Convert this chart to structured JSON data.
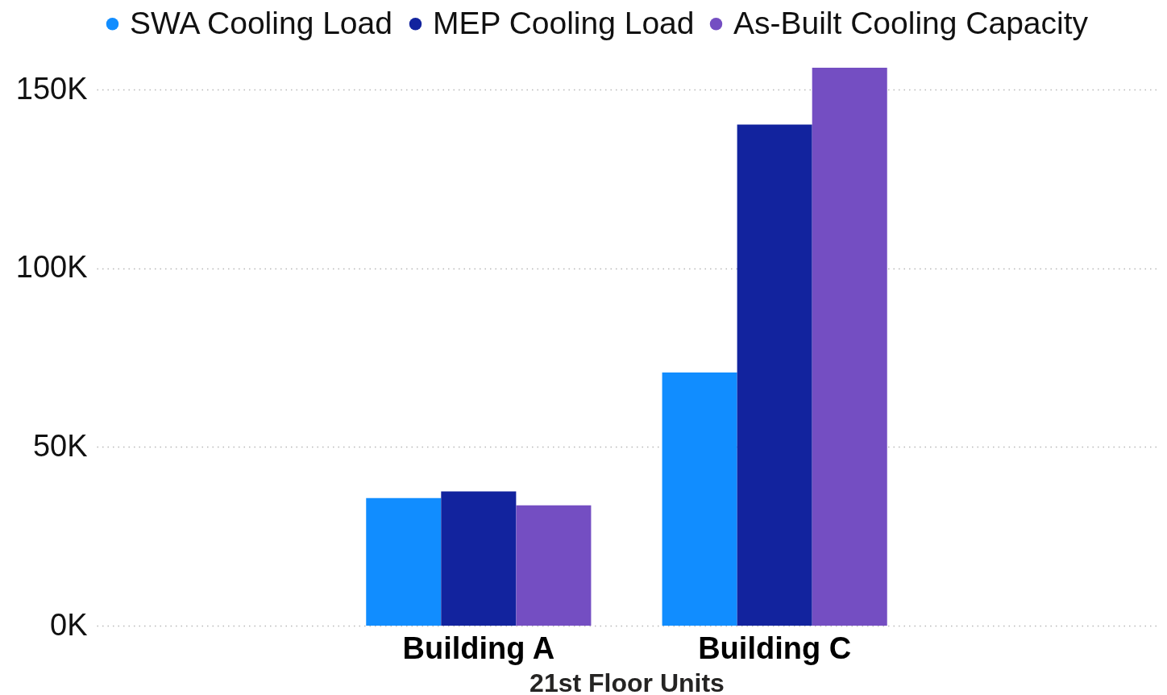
{
  "chart_data": {
    "type": "bar",
    "xlabel": "21st Floor Units",
    "categories": [
      "Building A",
      "Building C"
    ],
    "series": [
      {
        "name": "SWA Cooling Load",
        "color": "#118dff",
        "values": [
          35700,
          70900
        ]
      },
      {
        "name": "MEP Cooling Load",
        "color": "#12239e",
        "values": [
          37600,
          140300
        ]
      },
      {
        "name": "As-Built Cooling Capacity",
        "color": "#744ec2",
        "values": [
          33700,
          156200
        ]
      }
    ],
    "ylim": [
      0,
      156200
    ],
    "yticks": [
      {
        "value": 0,
        "label": "0K"
      },
      {
        "value": 50000,
        "label": "50K"
      },
      {
        "value": 100000,
        "label": "100K"
      },
      {
        "value": 150000,
        "label": "150K"
      }
    ],
    "grid": "y",
    "legend": "top"
  }
}
